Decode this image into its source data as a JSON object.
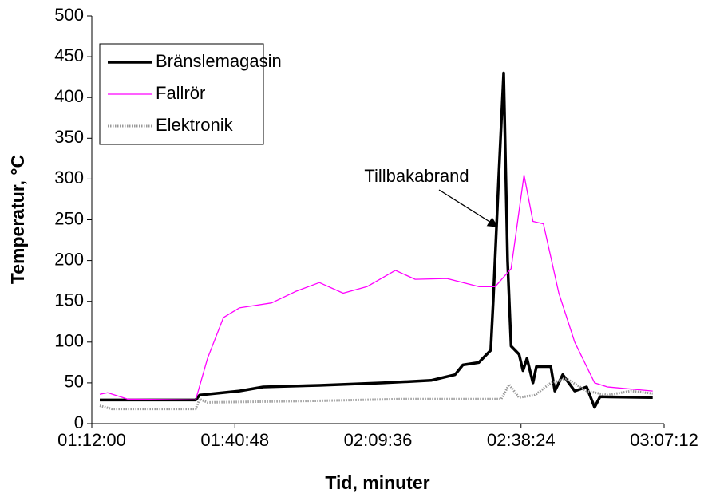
{
  "chart_data": {
    "type": "line",
    "annotation": "Tillbakabrand",
    "xlabel": "Tid, minuter",
    "ylabel": "Temperatur, °C",
    "xlim": [
      72,
      187.2
    ],
    "xticks": [
      {
        "value": 72,
        "label": "01:12:00"
      },
      {
        "value": 100.8,
        "label": "01:40:48"
      },
      {
        "value": 129.6,
        "label": "02:09:36"
      },
      {
        "value": 158.4,
        "label": "02:38:24"
      },
      {
        "value": 187.2,
        "label": "03:07:12"
      }
    ],
    "ylim": [
      0,
      500
    ],
    "yticks": [
      0,
      50,
      100,
      150,
      200,
      250,
      300,
      350,
      400,
      450,
      500
    ],
    "grid": false,
    "legend": "upper left",
    "series": [
      {
        "name": "Bränslemagasin",
        "color": "#000000",
        "line_style": "solid",
        "x": [
          73.6,
          92.9,
          93.7,
          101.7,
          106.5,
          117.8,
          130.6,
          140.3,
          145.1,
          146.7,
          149.9,
          152.3,
          152.8,
          153.9,
          154.9,
          155.7,
          156.4,
          158.0,
          158.8,
          159.6,
          160.8,
          161.5,
          164.4,
          165.2,
          166.8,
          169.2,
          171.6,
          173.2,
          174.3,
          184.9
        ],
        "values": [
          29,
          29,
          35,
          40,
          45,
          47,
          50,
          53,
          60,
          72,
          75,
          90,
          150,
          300,
          430,
          200,
          95,
          85,
          65,
          80,
          50,
          70,
          70,
          40,
          60,
          40,
          45,
          20,
          33,
          32
        ]
      },
      {
        "name": "Fallrör",
        "color": "#ff00ff",
        "line_style": "thin",
        "x": [
          73.6,
          75.2,
          79.2,
          92.9,
          95.3,
          98.5,
          101.7,
          108.2,
          113.0,
          117.8,
          122.6,
          127.4,
          133.1,
          137.1,
          143.5,
          149.9,
          153.2,
          156.4,
          159.0,
          160.8,
          162.9,
          166.0,
          169.2,
          173.2,
          175.8,
          184.9
        ],
        "values": [
          36,
          38,
          30,
          29,
          80,
          130,
          142,
          148,
          162,
          173,
          160,
          168,
          188,
          177,
          178,
          168,
          168,
          190,
          305,
          248,
          245,
          160,
          100,
          50,
          45,
          40
        ]
      },
      {
        "name": "Elektronik",
        "color": "#999999",
        "line_style": "dotted",
        "x": [
          73.6,
          76.0,
          92.9,
          93.7,
          95.3,
          117.8,
          133.9,
          154.4,
          156.0,
          158.0,
          161.2,
          164.4,
          167.6,
          171.6,
          175.8,
          180.5,
          184.9
        ],
        "values": [
          22,
          18,
          18,
          30,
          26,
          28,
          30,
          30,
          48,
          32,
          35,
          50,
          55,
          40,
          35,
          40,
          37
        ]
      }
    ]
  }
}
